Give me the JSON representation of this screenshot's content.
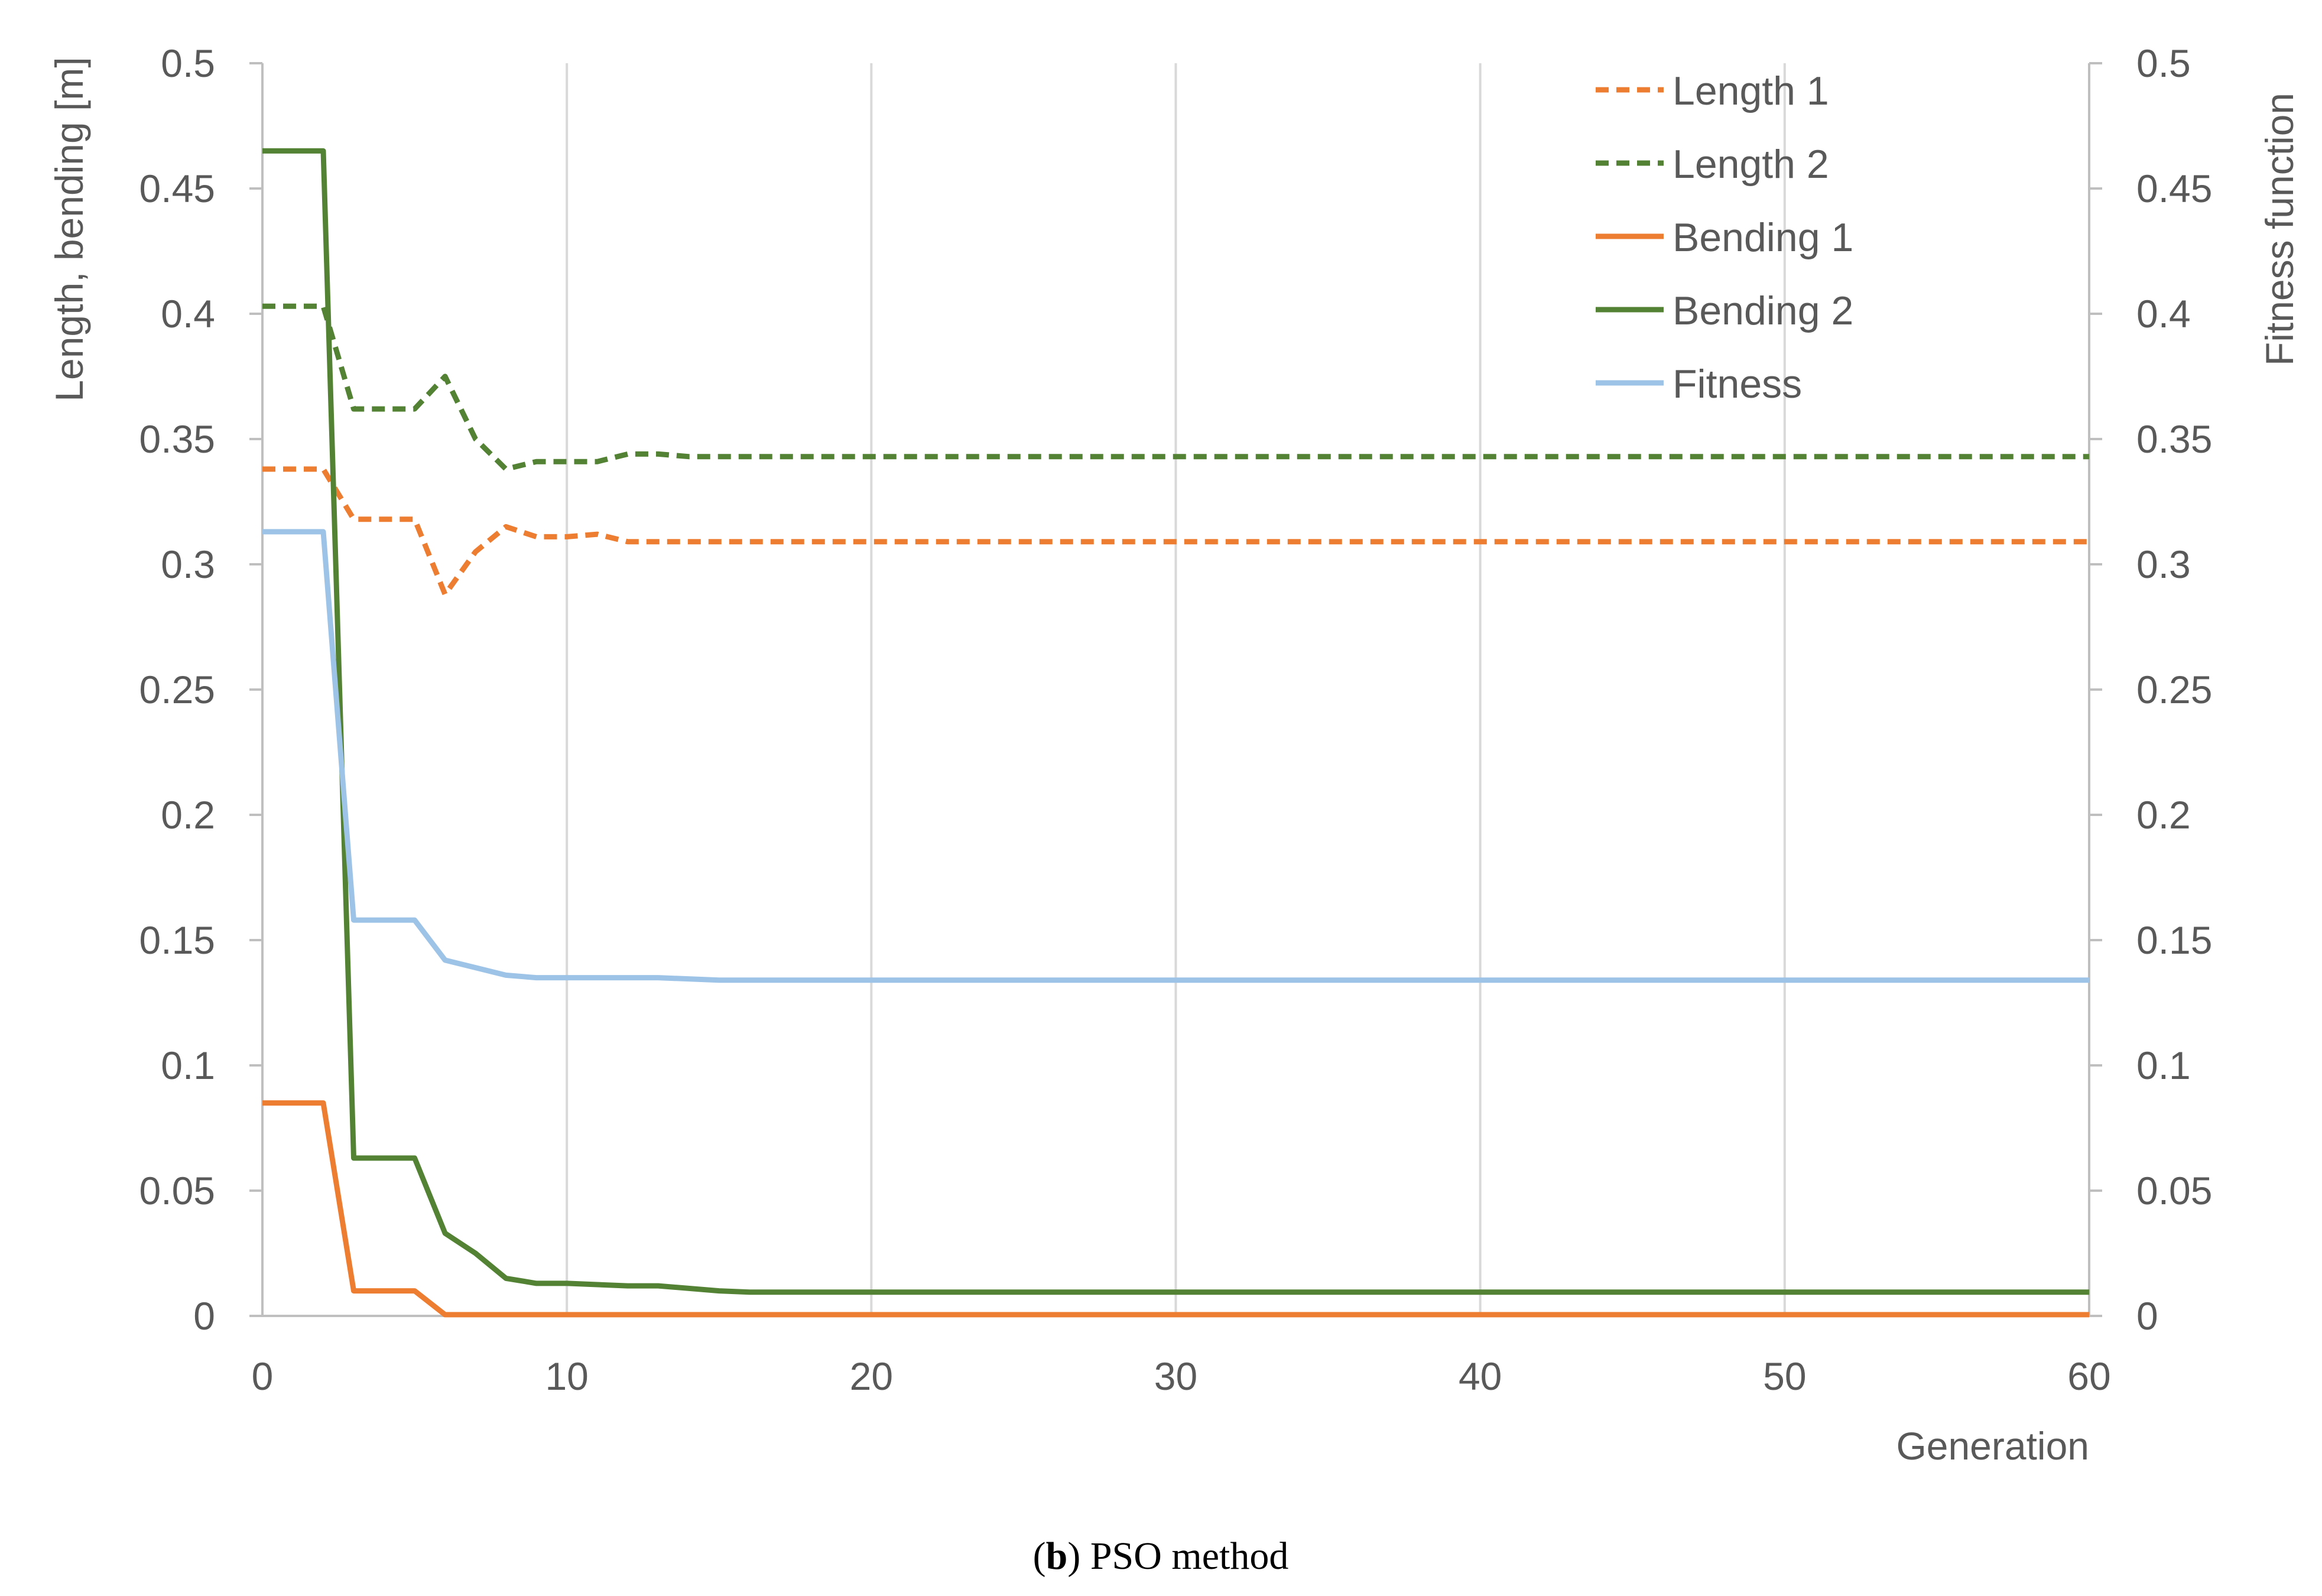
{
  "chart_data": {
    "type": "line",
    "caption": {
      "letter": "b",
      "open": "(",
      "close": ")",
      "text": " PSO method"
    },
    "xlabel": "Generation",
    "ylabel_left": "Length, bending [m]",
    "ylabel_right": "Fitness function",
    "xlim": [
      0,
      60
    ],
    "ylim_left": [
      0,
      0.5
    ],
    "ylim_right": [
      0,
      0.5
    ],
    "x_ticks": [
      "0",
      "10",
      "20",
      "30",
      "40",
      "50",
      "60"
    ],
    "x_tick_values": [
      0,
      10,
      20,
      30,
      40,
      50,
      60
    ],
    "y_ticks": [
      "0",
      "0.05",
      "0.1",
      "0.15",
      "0.2",
      "0.25",
      "0.3",
      "0.35",
      "0.4",
      "0.45",
      "0.5"
    ],
    "y_tick_values": [
      0,
      0.05,
      0.1,
      0.15,
      0.2,
      0.25,
      0.3,
      0.35,
      0.4,
      0.45,
      0.5
    ],
    "grid": "vertical",
    "legend_position": "top-right",
    "series": [
      {
        "name": "Length 1",
        "color": "#ed7d31",
        "dash": true,
        "axis": "left",
        "x": [
          0,
          2,
          3,
          5,
          6,
          7,
          8,
          9,
          10,
          11,
          12,
          14,
          60
        ],
        "y": [
          0.338,
          0.338,
          0.318,
          0.318,
          0.288,
          0.305,
          0.315,
          0.311,
          0.311,
          0.312,
          0.309,
          0.309,
          0.309
        ]
      },
      {
        "name": "Length 2",
        "color": "#548235",
        "dash": true,
        "axis": "left",
        "x": [
          0,
          2,
          3,
          5,
          6,
          7,
          8,
          9,
          10,
          11,
          12,
          13,
          14,
          60
        ],
        "y": [
          0.403,
          0.403,
          0.362,
          0.362,
          0.375,
          0.35,
          0.338,
          0.341,
          0.341,
          0.341,
          0.344,
          0.344,
          0.343,
          0.343
        ]
      },
      {
        "name": "Bending 1",
        "color": "#ed7d31",
        "dash": false,
        "axis": "left",
        "x": [
          0,
          2,
          3,
          5,
          6,
          60
        ],
        "y": [
          0.085,
          0.085,
          0.01,
          0.01,
          0.0005,
          0.0005
        ]
      },
      {
        "name": "Bending 2",
        "color": "#548235",
        "dash": false,
        "axis": "left",
        "x": [
          0,
          2,
          3,
          5,
          6,
          7,
          8,
          9,
          10,
          12,
          13,
          15,
          16,
          23,
          60
        ],
        "y": [
          0.465,
          0.465,
          0.063,
          0.063,
          0.033,
          0.025,
          0.015,
          0.013,
          0.013,
          0.012,
          0.012,
          0.01,
          0.0095,
          0.0095,
          0.0095
        ]
      },
      {
        "name": "Fitness",
        "color": "#9dc3e6",
        "dash": false,
        "axis": "right",
        "x": [
          0,
          2,
          3,
          5,
          6,
          7,
          8,
          9,
          10,
          13,
          15,
          18,
          60
        ],
        "y": [
          0.313,
          0.313,
          0.158,
          0.158,
          0.142,
          0.139,
          0.136,
          0.135,
          0.135,
          0.135,
          0.134,
          0.134,
          0.134
        ]
      }
    ]
  }
}
